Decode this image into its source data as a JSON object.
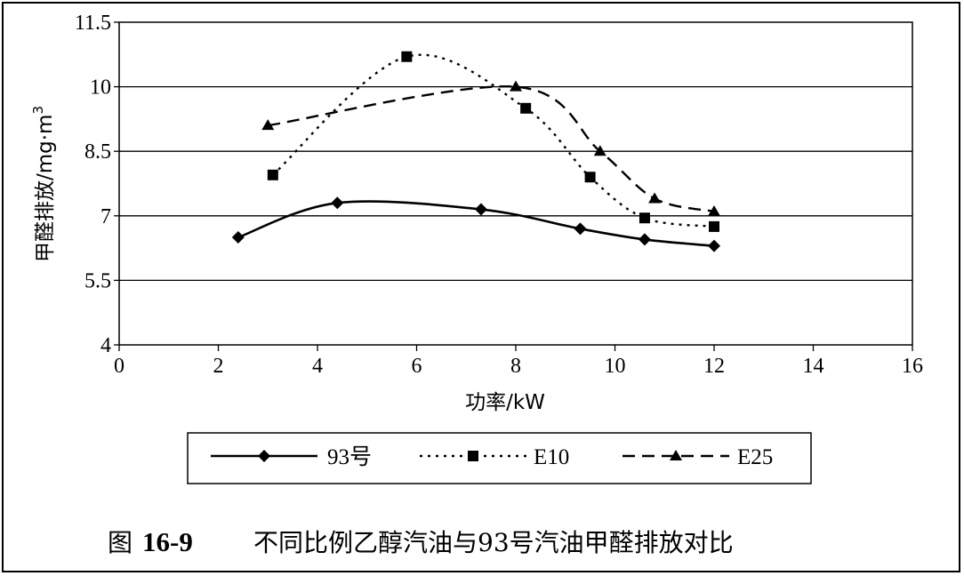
{
  "chart_data": {
    "type": "line",
    "xlabel": "功率/kW",
    "ylabel": "甲醛排放/mg·m",
    "ylabel_sup": "3",
    "xlim": [
      0,
      16
    ],
    "ylim": [
      4,
      11.5
    ],
    "xticks": [
      "0",
      "2",
      "4",
      "6",
      "8",
      "10",
      "12",
      "14",
      "16"
    ],
    "yticks": [
      "4",
      "5.5",
      "7",
      "8.5",
      "10",
      "11.5"
    ],
    "grid": "horizontal",
    "legend_position": "bottom",
    "series": [
      {
        "name": "93号",
        "line_style": "solid",
        "marker": "diamond",
        "x": [
          2.4,
          4.4,
          7.3,
          9.3,
          10.6,
          12.0
        ],
        "y": [
          6.5,
          7.3,
          7.15,
          6.7,
          6.45,
          6.3
        ]
      },
      {
        "name": "E10",
        "line_style": "dotted",
        "marker": "square",
        "x": [
          3.1,
          5.8,
          8.2,
          9.5,
          10.6,
          12.0
        ],
        "y": [
          7.95,
          10.7,
          9.5,
          7.9,
          6.95,
          6.75
        ]
      },
      {
        "name": "E25",
        "line_style": "dashed",
        "marker": "triangle",
        "x": [
          3.0,
          8.0,
          9.7,
          10.8,
          12.0
        ],
        "y": [
          9.1,
          10.0,
          8.5,
          7.4,
          7.1
        ]
      }
    ]
  },
  "caption": {
    "label": "图",
    "number": "16-9",
    "text": "不同比例乙醇汽油与93号汽油甲醛排放对比"
  }
}
